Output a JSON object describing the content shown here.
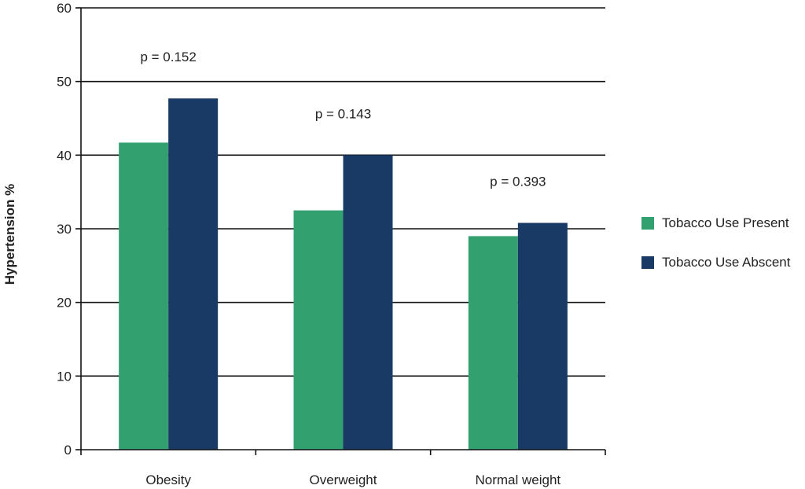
{
  "chart_data": {
    "type": "bar",
    "title": "",
    "xlabel": "",
    "ylabel": "Hypertension %",
    "ylim": [
      0,
      60
    ],
    "yticks": [
      0,
      10,
      20,
      30,
      40,
      50,
      60
    ],
    "grid": true,
    "legend_position": "right",
    "categories": [
      "Obesity",
      "Overweight",
      "Normal weight"
    ],
    "series": [
      {
        "name": "Tobacco Use Present",
        "color": "#33a070",
        "values": [
          41.7,
          32.5,
          29.0
        ]
      },
      {
        "name": "Tobacco Use Abscent",
        "color": "#1a3a66",
        "values": [
          47.7,
          40.0,
          30.8
        ]
      }
    ],
    "annotations": [
      "p = 0.152",
      "p = 0.143",
      "p = 0.393"
    ]
  }
}
